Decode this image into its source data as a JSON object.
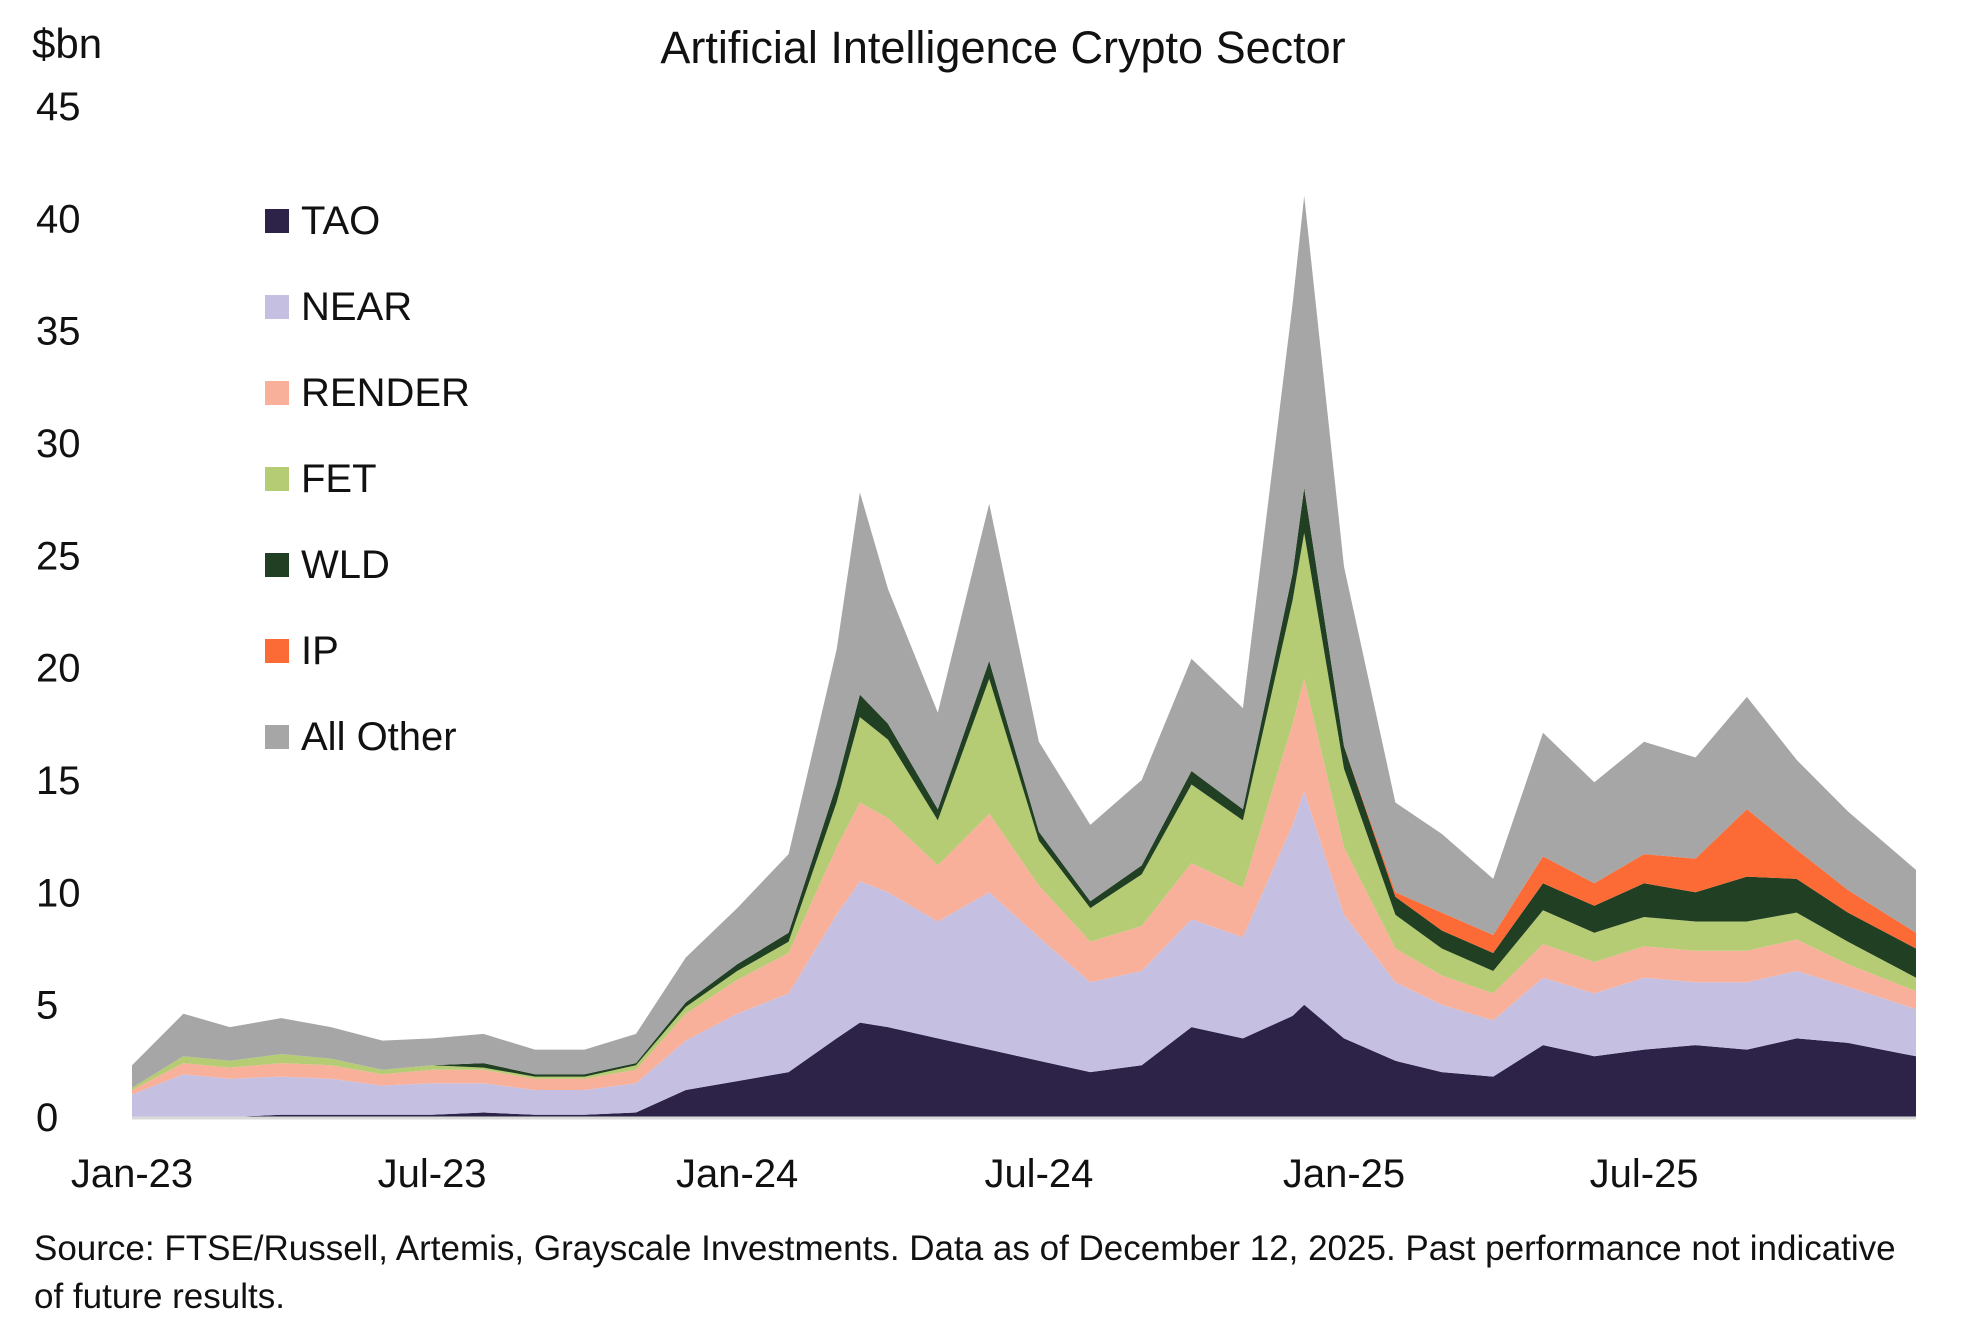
{
  "chart_data": {
    "type": "area",
    "stacked": true,
    "title": "Artificial Intelligence Crypto Sector",
    "ylabel": "$bn",
    "ylim": [
      0,
      45
    ],
    "yticks": [
      "0",
      "5",
      "10",
      "15",
      "20",
      "25",
      "30",
      "35",
      "40",
      "45"
    ],
    "xticks": [
      {
        "label": "Jan-23",
        "date": "2023-01-01"
      },
      {
        "label": "Jul-23",
        "date": "2023-07-01"
      },
      {
        "label": "Jan-24",
        "date": "2024-01-01"
      },
      {
        "label": "Jul-24",
        "date": "2024-07-01"
      },
      {
        "label": "Jan-25",
        "date": "2025-01-01"
      },
      {
        "label": "Jul-25",
        "date": "2025-07-01"
      }
    ],
    "xlim": [
      "2023-01-01",
      "2025-12-12"
    ],
    "grid": false,
    "legend_position": "top-left",
    "dates": [
      "2023-01-01",
      "2023-02-01",
      "2023-03-01",
      "2023-04-01",
      "2023-05-01",
      "2023-06-01",
      "2023-07-01",
      "2023-08-01",
      "2023-09-01",
      "2023-10-01",
      "2023-11-01",
      "2023-12-01",
      "2024-01-01",
      "2024-02-01",
      "2024-03-01",
      "2024-03-15",
      "2024-04-01",
      "2024-05-01",
      "2024-06-01",
      "2024-07-01",
      "2024-08-01",
      "2024-09-01",
      "2024-10-01",
      "2024-11-01",
      "2024-12-01",
      "2024-12-08",
      "2025-01-01",
      "2025-02-01",
      "2025-03-01",
      "2025-04-01",
      "2025-05-01",
      "2025-06-01",
      "2025-07-01",
      "2025-08-01",
      "2025-09-01",
      "2025-10-01",
      "2025-11-01",
      "2025-12-12"
    ],
    "series": [
      {
        "name": "TAO",
        "color": "#2d2349",
        "values": [
          0,
          0,
          0,
          0.1,
          0.1,
          0.1,
          0.1,
          0.2,
          0.1,
          0.1,
          0.2,
          1.2,
          1.6,
          2.0,
          3.5,
          4.2,
          4.0,
          3.5,
          3.0,
          2.5,
          2.0,
          2.3,
          4.0,
          3.5,
          4.5,
          5.0,
          3.5,
          2.5,
          2.0,
          1.8,
          3.2,
          2.7,
          3.0,
          3.2,
          3.0,
          3.5,
          3.3,
          2.7
        ]
      },
      {
        "name": "NEAR",
        "color": "#c5c0e2",
        "values": [
          1.0,
          1.9,
          1.7,
          1.7,
          1.6,
          1.3,
          1.4,
          1.3,
          1.1,
          1.1,
          1.3,
          2.2,
          3.0,
          3.5,
          5.5,
          6.3,
          6.0,
          5.2,
          7.0,
          5.5,
          4.0,
          4.2,
          4.8,
          4.5,
          8.5,
          9.5,
          5.5,
          3.5,
          3.0,
          2.5,
          3.0,
          2.8,
          3.2,
          2.8,
          3.0,
          3.0,
          2.5,
          2.1
        ]
      },
      {
        "name": "RENDER",
        "color": "#f9b09a",
        "values": [
          0.2,
          0.5,
          0.5,
          0.6,
          0.6,
          0.5,
          0.6,
          0.6,
          0.5,
          0.5,
          0.6,
          1.2,
          1.5,
          1.8,
          3.0,
          3.5,
          3.3,
          2.5,
          3.5,
          2.3,
          1.8,
          2.0,
          2.5,
          2.2,
          4.5,
          5.0,
          3.0,
          1.5,
          1.3,
          1.2,
          1.5,
          1.4,
          1.4,
          1.4,
          1.4,
          1.4,
          1.0,
          0.8
        ]
      },
      {
        "name": "FET",
        "color": "#b5cc74",
        "values": [
          0.1,
          0.3,
          0.3,
          0.4,
          0.3,
          0.2,
          0.2,
          0.1,
          0.1,
          0.1,
          0.2,
          0.3,
          0.4,
          0.5,
          2.0,
          3.8,
          3.5,
          2.0,
          6.0,
          2.0,
          1.5,
          2.3,
          3.5,
          3.0,
          5.5,
          6.5,
          3.5,
          1.5,
          1.2,
          1.0,
          1.5,
          1.3,
          1.3,
          1.3,
          1.3,
          1.2,
          1.0,
          0.6
        ]
      },
      {
        "name": "WLD",
        "color": "#213f22",
        "values": [
          0,
          0,
          0,
          0,
          0,
          0,
          0,
          0.2,
          0.1,
          0.1,
          0.1,
          0.2,
          0.3,
          0.4,
          0.8,
          1.0,
          0.7,
          0.5,
          0.8,
          0.4,
          0.3,
          0.4,
          0.6,
          0.5,
          1.2,
          2.0,
          1.0,
          0.8,
          0.8,
          0.8,
          1.2,
          1.2,
          1.5,
          1.3,
          2.0,
          1.5,
          1.3,
          1.3
        ]
      },
      {
        "name": "IP",
        "color": "#fc6a36",
        "values": [
          0,
          0,
          0,
          0,
          0,
          0,
          0,
          0,
          0,
          0,
          0,
          0,
          0,
          0,
          0,
          0,
          0,
          0,
          0,
          0,
          0,
          0,
          0,
          0,
          0,
          0,
          0,
          0.2,
          0.8,
          0.8,
          1.2,
          1.0,
          1.3,
          1.5,
          3.0,
          1.3,
          1.0,
          0.7
        ]
      },
      {
        "name": "All Other",
        "color": "#a6a6a6",
        "values": [
          1.0,
          1.9,
          1.5,
          1.6,
          1.4,
          1.3,
          1.2,
          1.3,
          1.1,
          1.1,
          1.3,
          2.0,
          2.5,
          3.5,
          6.0,
          9.0,
          6.0,
          4.3,
          7.0,
          4.0,
          3.4,
          3.8,
          5.0,
          4.5,
          12.0,
          13.0,
          8.0,
          4.0,
          3.5,
          2.5,
          5.5,
          4.5,
          5.0,
          4.5,
          5.0,
          4.0,
          3.5,
          2.8
        ]
      }
    ],
    "source": "Source: FTSE/Russell, Artemis, Grayscale Investments. Data as of December 12, 2025. Past performance not indicative of future results."
  }
}
